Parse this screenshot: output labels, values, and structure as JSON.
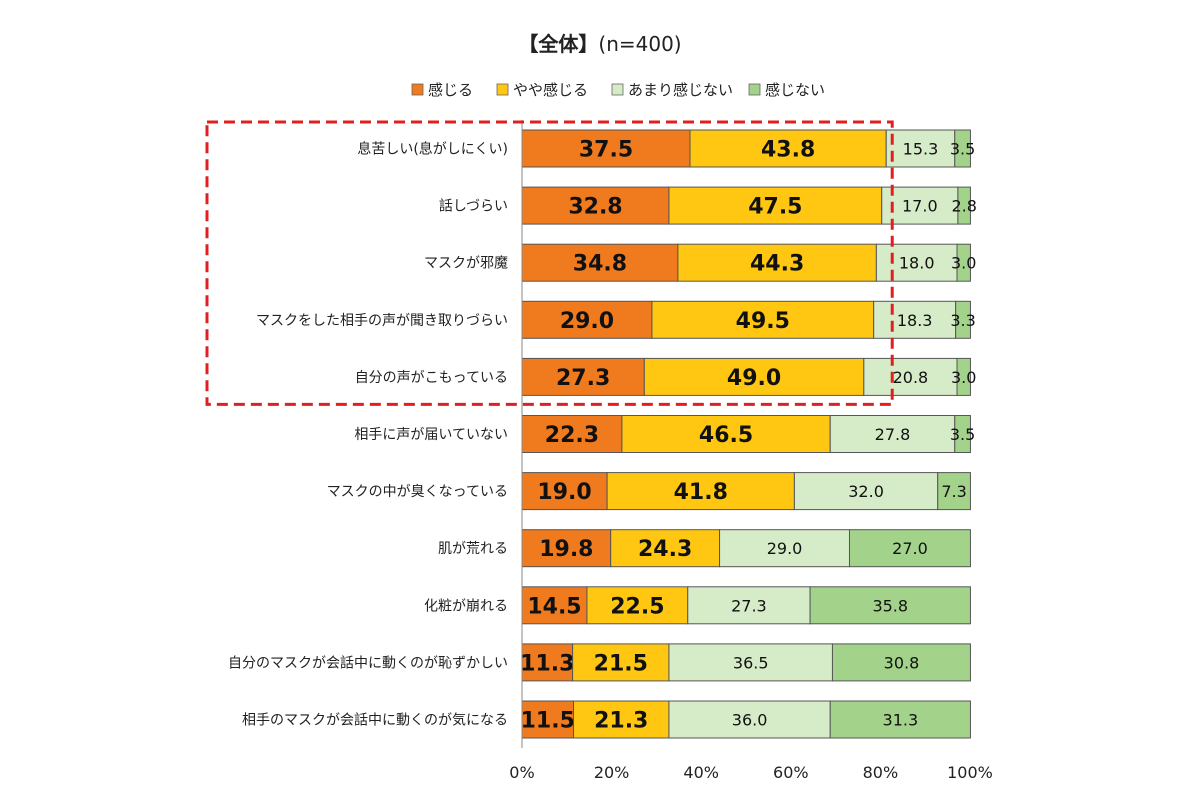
{
  "chart_data": {
    "type": "bar",
    "orientation": "horizontal",
    "stacked": "100%",
    "title": "【全体】",
    "subtitle": "(n=400)",
    "legend_position": "top",
    "categories": [
      "息苦しい(息がしにくい)",
      "話しづらい",
      "マスクが邪魔",
      "マスクをした相手の声が聞き取りづらい",
      "自分の声がこもっている",
      "相手に声が届いていない",
      "マスクの中が臭くなっている",
      "肌が荒れる",
      "化粧が崩れる",
      "自分のマスクが会話中に動くのが恥ずかしい",
      "相手のマスクが会話中に動くのが気になる"
    ],
    "series": [
      {
        "name": "感じる",
        "color": "#f07a1e",
        "values": [
          37.5,
          32.8,
          34.8,
          29.0,
          27.3,
          22.3,
          19.0,
          19.8,
          14.5,
          11.3,
          11.5
        ]
      },
      {
        "name": "やや感じる",
        "color": "#ffc711",
        "values": [
          43.8,
          47.5,
          44.3,
          49.5,
          49.0,
          46.5,
          41.8,
          24.3,
          22.5,
          21.5,
          21.3
        ]
      },
      {
        "name": "あまり感じない",
        "color": "#d6ecc8",
        "values": [
          15.3,
          17.0,
          18.0,
          18.3,
          20.8,
          27.8,
          32.0,
          29.0,
          27.3,
          36.5,
          36.0
        ]
      },
      {
        "name": "感じない",
        "color": "#a3d28a",
        "values": [
          3.5,
          2.8,
          3.0,
          3.3,
          3.0,
          3.5,
          7.3,
          27.0,
          35.8,
          30.8,
          31.3
        ]
      }
    ],
    "xlim": [
      0,
      100
    ],
    "xticks": [
      "0%",
      "20%",
      "40%",
      "60%",
      "80%",
      "100%"
    ],
    "highlight": {
      "start_index": 0,
      "end_index": 4,
      "style": "red dashed box",
      "color": "#e02020"
    }
  }
}
